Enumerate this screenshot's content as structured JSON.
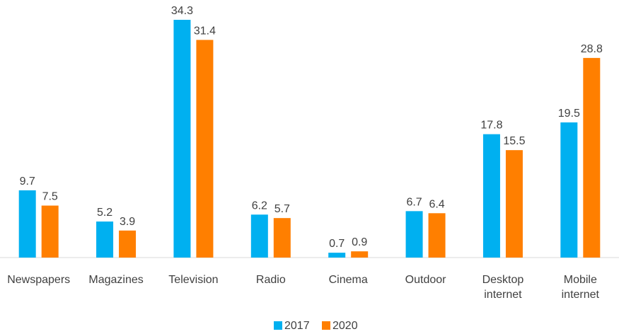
{
  "chart_data": {
    "type": "bar",
    "title": "",
    "xlabel": "",
    "ylabel": "",
    "categories": [
      [
        "Newspapers"
      ],
      [
        "Magazines"
      ],
      [
        "Television"
      ],
      [
        "Radio"
      ],
      [
        "Cinema"
      ],
      [
        "Outdoor"
      ],
      [
        "Desktop",
        "internet"
      ],
      [
        "Mobile",
        "internet"
      ]
    ],
    "series": [
      {
        "name": "2017",
        "color": "#00b0f0",
        "values": [
          9.7,
          5.2,
          34.3,
          6.2,
          0.7,
          6.7,
          17.8,
          19.5
        ]
      },
      {
        "name": "2020",
        "color": "#ff7f00",
        "values": [
          7.5,
          3.9,
          31.4,
          5.7,
          0.9,
          6.4,
          15.5,
          28.8
        ]
      }
    ],
    "ylim": [
      0,
      34.3
    ],
    "grid": false,
    "legend": "bottom-center",
    "data_labels": true
  }
}
